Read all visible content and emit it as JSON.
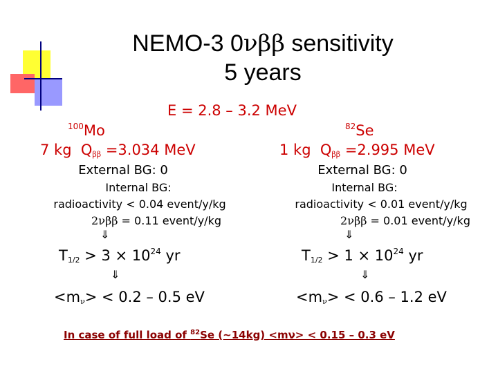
{
  "title": {
    "line1_prefix": "NEMO-3 0",
    "line1_greek": "νββ",
    "line1_suffix": " sensitivity",
    "line2": "5 years"
  },
  "energy_window": "E = 2.8 – 3.2 MeV",
  "left": {
    "isotope_mass": "100",
    "isotope_symbol": "Mo",
    "mass": "7 kg",
    "q_label": "Q",
    "q_sub": "ββ",
    "q_value": " =3.034 MeV",
    "external_bg": "External BG: 0",
    "internal_bg": "Internal BG:",
    "radioactivity": "radioactivity < 0.04 event/y/kg",
    "twonu_greek": "2νββ",
    "twonu_value": " = 0.11 event/y/kg",
    "arrow1": "⇓",
    "t_half": "T",
    "t_sub": "1/2",
    "t_value": " > 3 × 10",
    "t_exp": "24",
    "t_unit": " yr",
    "arrow2": "⇓",
    "mnu_prefix": "<m",
    "mnu_sub": "ν",
    "mnu_value": "> < 0.2 – 0.5 eV"
  },
  "right": {
    "isotope_mass": "82",
    "isotope_symbol": "Se",
    "mass": "1 kg",
    "q_label": "Q",
    "q_sub": "ββ",
    "q_value": " =2.995 MeV",
    "external_bg": "External BG: 0",
    "internal_bg": "Internal BG:",
    "radioactivity": "radioactivity < 0.01 event/y/kg",
    "twonu_greek": "2νββ",
    "twonu_value": " = 0.01 event/y/kg",
    "arrow1": "⇓",
    "t_half": "T",
    "t_sub": "1/2",
    "t_value": " > 1 × 10",
    "t_exp": "24",
    "t_unit": " yr",
    "arrow2": "⇓",
    "mnu_prefix": "<m",
    "mnu_sub": "ν",
    "mnu_value": "> < 0.6 – 1.2 eV"
  },
  "footer": {
    "part1": "In case of full load of ",
    "sup": "82",
    "part2": "Se (~14kg) <mν> < 0.15 – 0.3 eV"
  },
  "colors": {
    "accent_red": "#cc0000",
    "footer_darkred": "#8b0000",
    "logo_yellow": "#ffff33",
    "logo_red": "#ff6666",
    "logo_blue": "#9999ff",
    "logo_lines": "#000080"
  }
}
